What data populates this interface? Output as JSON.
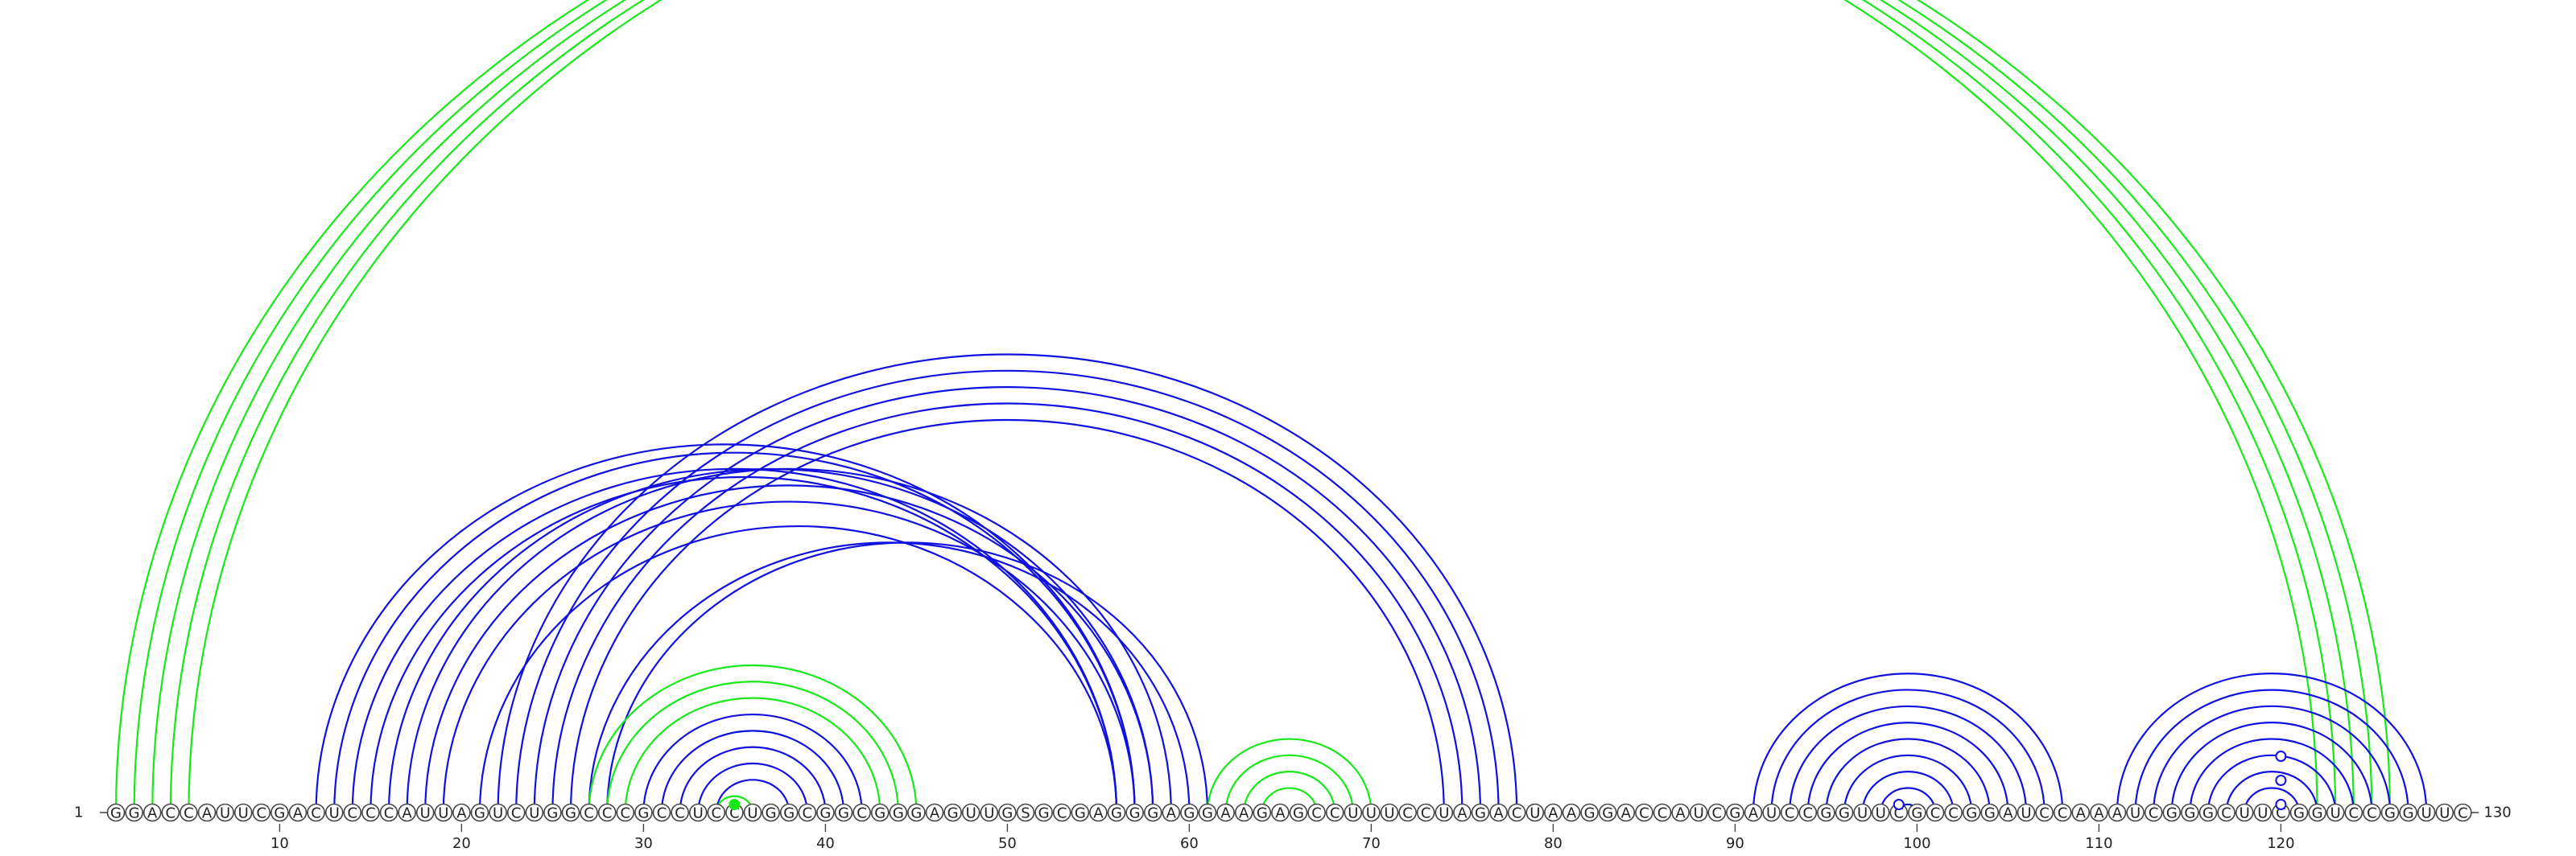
{
  "diagram": {
    "type": "rna-arc-diagram",
    "sequence": "GGACCAUUCGACUCCCAUUAGUCUGGCCCGCCUCCUGGCGGCGGGAGUUGSGCGAGGGAGGAAGAGCCUUUCCUAGACUAAGGACCAUCGAUCCGGUUCGCCGGAUCCAAAUCGGGCUUCGGUCCGGUUC",
    "start_label": "1",
    "end_label": "130",
    "tick_values": [
      "10",
      "20",
      "30",
      "40",
      "50",
      "60",
      "70",
      "80",
      "90",
      "100",
      "110",
      "120"
    ],
    "colors": {
      "blue": "#1010e0",
      "green": "#18e818"
    },
    "arcs": [
      {
        "i": 1,
        "j": 122,
        "c": "green"
      },
      {
        "i": 2,
        "j": 123,
        "c": "green"
      },
      {
        "i": 3,
        "j": 124,
        "c": "green"
      },
      {
        "i": 4,
        "j": 125,
        "c": "green"
      },
      {
        "i": 5,
        "j": 126,
        "c": "green"
      },
      {
        "i": 12,
        "j": 57,
        "c": "blue"
      },
      {
        "i": 13,
        "j": 57,
        "c": "blue"
      },
      {
        "i": 14,
        "j": 56,
        "c": "blue"
      },
      {
        "i": 15,
        "j": 56,
        "c": "blue"
      },
      {
        "i": 16,
        "j": 58,
        "c": "blue"
      },
      {
        "i": 17,
        "j": 59,
        "c": "blue"
      },
      {
        "i": 18,
        "j": 58,
        "c": "blue"
      },
      {
        "i": 19,
        "j": 57,
        "c": "blue"
      },
      {
        "i": 21,
        "j": 56,
        "c": "blue"
      },
      {
        "i": 22,
        "j": 78,
        "c": "blue"
      },
      {
        "i": 23,
        "j": 77,
        "c": "blue"
      },
      {
        "i": 24,
        "j": 76,
        "c": "blue"
      },
      {
        "i": 25,
        "j": 75,
        "c": "blue"
      },
      {
        "i": 26,
        "j": 74,
        "c": "blue"
      },
      {
        "i": 27,
        "j": 60,
        "c": "blue"
      },
      {
        "i": 28,
        "j": 61,
        "c": "blue"
      },
      {
        "i": 27,
        "j": 45,
        "c": "green"
      },
      {
        "i": 28,
        "j": 44,
        "c": "green"
      },
      {
        "i": 29,
        "j": 43,
        "c": "green"
      },
      {
        "i": 30,
        "j": 42,
        "c": "blue"
      },
      {
        "i": 31,
        "j": 41,
        "c": "blue"
      },
      {
        "i": 32,
        "j": 40,
        "c": "blue"
      },
      {
        "i": 33,
        "j": 39,
        "c": "blue"
      },
      {
        "i": 34,
        "j": 38,
        "c": "blue"
      },
      {
        "i": 34,
        "j": 36,
        "c": "green"
      },
      {
        "i": 61,
        "j": 70,
        "c": "green"
      },
      {
        "i": 62,
        "j": 69,
        "c": "green"
      },
      {
        "i": 63,
        "j": 68,
        "c": "green"
      },
      {
        "i": 64,
        "j": 67,
        "c": "green"
      },
      {
        "i": 91,
        "j": 108,
        "c": "blue"
      },
      {
        "i": 92,
        "j": 107,
        "c": "blue"
      },
      {
        "i": 93,
        "j": 106,
        "c": "blue"
      },
      {
        "i": 94,
        "j": 105,
        "c": "blue"
      },
      {
        "i": 95,
        "j": 104,
        "c": "blue"
      },
      {
        "i": 96,
        "j": 103,
        "c": "blue"
      },
      {
        "i": 97,
        "j": 102,
        "c": "blue"
      },
      {
        "i": 98,
        "j": 101,
        "c": "blue"
      },
      {
        "i": 99,
        "j": 100,
        "c": "blue"
      },
      {
        "i": 111,
        "j": 128,
        "c": "blue"
      },
      {
        "i": 112,
        "j": 127,
        "c": "blue"
      },
      {
        "i": 113,
        "j": 126,
        "c": "blue"
      },
      {
        "i": 114,
        "j": 125,
        "c": "blue"
      },
      {
        "i": 115,
        "j": 124,
        "c": "blue"
      },
      {
        "i": 116,
        "j": 123,
        "c": "blue"
      },
      {
        "i": 117,
        "j": 122,
        "c": "blue"
      },
      {
        "i": 118,
        "j": 121,
        "c": "blue"
      }
    ],
    "markers": [
      {
        "pos": 35,
        "c": "green",
        "filled": true
      },
      {
        "pos": 99,
        "c": "blue",
        "filled": false
      },
      {
        "pos": 120,
        "c": "blue",
        "filled": false
      },
      {
        "pos": 120,
        "c": "blue",
        "filled": false,
        "level": 2
      },
      {
        "pos": 120,
        "c": "blue",
        "filled": false,
        "level": 3
      }
    ]
  }
}
